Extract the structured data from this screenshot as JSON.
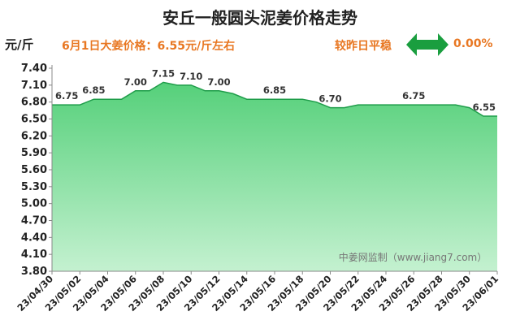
{
  "title": "安丘一般圆头泥姜价格走势",
  "unit_label": "元/斤",
  "headline": "6月1日大姜价格：6.55元/斤左右",
  "compare": {
    "label": "较昨日平稳",
    "value": "0.00%",
    "icon": "double-arrow-icon",
    "color": "#1a9e3f"
  },
  "watermark": "中姜网监制（www.jiang7.com）",
  "colors": {
    "title": "#222222",
    "accent": "#e87722",
    "line": "#1f9d4a",
    "area_top": "#55d07a",
    "area_bottom": "#c4f1d0"
  },
  "chart_data": {
    "type": "area",
    "x": [
      "23/04/30",
      "23/05/01",
      "23/05/02",
      "23/05/03",
      "23/05/04",
      "23/05/05",
      "23/05/06",
      "23/05/07",
      "23/05/08",
      "23/05/09",
      "23/05/10",
      "23/05/11",
      "23/05/12",
      "23/05/13",
      "23/05/14",
      "23/05/15",
      "23/05/16",
      "23/05/17",
      "23/05/18",
      "23/05/19",
      "23/05/20",
      "23/05/21",
      "23/05/22",
      "23/05/23",
      "23/05/24",
      "23/05/25",
      "23/05/26",
      "23/05/27",
      "23/05/28",
      "23/05/29",
      "23/05/30",
      "23/05/31",
      "23/06/01"
    ],
    "x_tick_labels": [
      "23/04/30",
      "23/05/02",
      "23/05/04",
      "23/05/06",
      "23/05/08",
      "23/05/10",
      "23/05/12",
      "23/05/14",
      "23/05/16",
      "23/05/18",
      "23/05/20",
      "23/05/22",
      "23/05/24",
      "23/05/26",
      "23/05/28",
      "23/05/30",
      "23/06/01"
    ],
    "values": [
      6.75,
      6.75,
      6.75,
      6.85,
      6.85,
      6.85,
      7.0,
      7.0,
      7.15,
      7.1,
      7.1,
      7.0,
      7.0,
      6.95,
      6.85,
      6.85,
      6.85,
      6.85,
      6.85,
      6.8,
      6.7,
      6.7,
      6.75,
      6.75,
      6.75,
      6.75,
      6.75,
      6.75,
      6.75,
      6.75,
      6.7,
      6.55,
      6.55
    ],
    "data_labels": [
      {
        "x": "23/04/30",
        "text": "6.75"
      },
      {
        "x": "23/05/03",
        "text": "6.85"
      },
      {
        "x": "23/05/06",
        "text": "7.00"
      },
      {
        "x": "23/05/08",
        "text": "7.15"
      },
      {
        "x": "23/05/10",
        "text": "7.10"
      },
      {
        "x": "23/05/12",
        "text": "7.00"
      },
      {
        "x": "23/05/16",
        "text": "6.85"
      },
      {
        "x": "23/05/20",
        "text": "6.70"
      },
      {
        "x": "23/05/26",
        "text": "6.75"
      },
      {
        "x": "23/06/01",
        "text": "6.55"
      }
    ],
    "y_ticks": [
      "3.80",
      "4.10",
      "4.40",
      "4.70",
      "5.00",
      "5.30",
      "5.60",
      "5.90",
      "6.20",
      "6.50",
      "6.80",
      "7.10",
      "7.40"
    ],
    "ylim": [
      3.8,
      7.4
    ],
    "grid": false
  }
}
